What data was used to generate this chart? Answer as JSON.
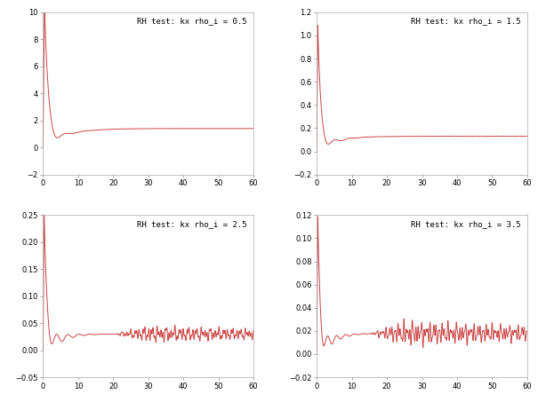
{
  "subplots": [
    {
      "title": "RH test: kx rho_i = 0.5",
      "xlim": [
        0,
        60
      ],
      "ylim": [
        -2,
        10
      ],
      "yticks": [
        -2,
        0,
        2,
        4,
        6,
        8,
        10
      ],
      "xticks": [
        0,
        10,
        20,
        30,
        40,
        50,
        60
      ],
      "peak": 10.0,
      "peak_t": 0.4,
      "rise_tau": 0.2,
      "decay_tau": 1.0,
      "steady": 1.4,
      "settle_tau": 6.0,
      "osc_freq": 1.2,
      "osc_amp": 1.2,
      "osc_decay": 2.5,
      "noise_amp": 0.0,
      "noise_start": 60
    },
    {
      "title": "RH test: kx rho_i = 1.5",
      "xlim": [
        0,
        60
      ],
      "ylim": [
        -0.2,
        1.2
      ],
      "yticks": [
        -0.2,
        0,
        0.2,
        0.4,
        0.6,
        0.8,
        1.0,
        1.2
      ],
      "xticks": [
        0,
        10,
        20,
        30,
        40,
        50,
        60
      ],
      "peak": 1.05,
      "peak_t": 0.3,
      "rise_tau": 0.15,
      "decay_tau": 0.8,
      "steady": 0.13,
      "settle_tau": 5.0,
      "osc_freq": 1.5,
      "osc_amp": 0.08,
      "osc_decay": 3.0,
      "noise_amp": 0.001,
      "noise_start": 30
    },
    {
      "title": "RH test: kx rho_i = 2.5",
      "xlim": [
        0,
        60
      ],
      "ylim": [
        -0.05,
        0.25
      ],
      "yticks": [
        -0.05,
        0,
        0.05,
        0.1,
        0.15,
        0.2,
        0.25
      ],
      "xticks": [
        0,
        10,
        20,
        30,
        40,
        50,
        60
      ],
      "peak": 0.24,
      "peak_t": 0.3,
      "rise_tau": 0.15,
      "decay_tau": 0.7,
      "steady": 0.03,
      "settle_tau": 4.0,
      "osc_freq": 2.0,
      "osc_amp": 0.025,
      "osc_decay": 4.0,
      "noise_amp": 0.006,
      "noise_start": 20
    },
    {
      "title": "RH test: kx rho_i = 3.5",
      "xlim": [
        0,
        60
      ],
      "ylim": [
        -0.02,
        0.12
      ],
      "yticks": [
        -0.02,
        0,
        0.02,
        0.04,
        0.06,
        0.08,
        0.1,
        0.12
      ],
      "xticks": [
        0,
        10,
        20,
        30,
        40,
        50,
        60
      ],
      "peak": 0.11,
      "peak_t": 0.3,
      "rise_tau": 0.15,
      "decay_tau": 0.6,
      "steady": 0.018,
      "settle_tau": 4.0,
      "osc_freq": 2.5,
      "osc_amp": 0.012,
      "osc_decay": 3.5,
      "noise_amp": 0.004,
      "noise_start": 15
    }
  ],
  "line_color": "#cc4444",
  "bg_color": "#ffffff",
  "title_fontsize": 6.5,
  "tick_fontsize": 6,
  "line_width": 0.7
}
